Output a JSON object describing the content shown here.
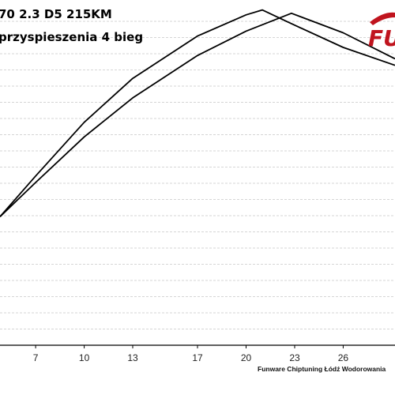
{
  "chart_data": {
    "type": "line",
    "title": "70 2.3 D5 215KM",
    "subtitle": "przyspieszenia 4 bieg",
    "footer": "Funware Chiptuning Łódź Wodorowania",
    "xlabel": "",
    "ylabel": "",
    "xlim": [
      4.8,
      29.2
    ],
    "ylim": [
      0,
      100
    ],
    "x_ticks": [
      "7",
      "10",
      "13",
      "17",
      "20",
      "23",
      "26"
    ],
    "grid": true,
    "series": [
      {
        "x": [
          4.8,
          7,
          10,
          13,
          17,
          20,
          21.0,
          22.5,
          26,
          29.2
        ],
        "values": [
          39.5,
          52,
          68.5,
          82,
          95,
          101.5,
          103,
          99.5,
          91.5,
          86
        ]
      },
      {
        "x": [
          4.8,
          7,
          10,
          13,
          17,
          20,
          22.8,
          26,
          29.2
        ],
        "values": [
          39.5,
          50,
          64,
          76,
          89,
          96.5,
          102,
          96,
          88
        ]
      }
    ]
  },
  "logo": {
    "text": "FU",
    "color_primary": "#c0141e",
    "color_secondary": "#1a1a1a"
  }
}
